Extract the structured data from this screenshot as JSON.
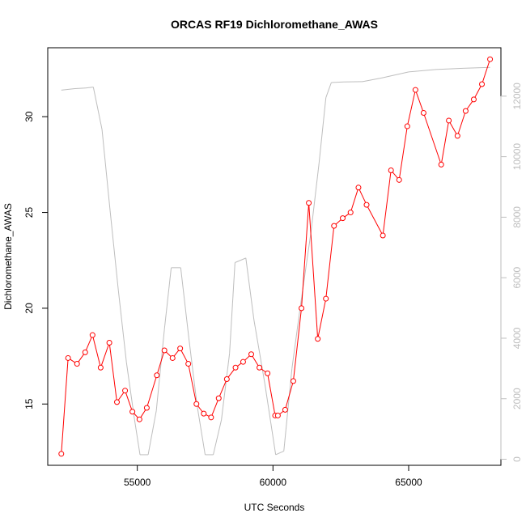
{
  "chart_data": {
    "type": "line",
    "title": "ORCAS RF19 Dichloromethane_AWAS",
    "xlabel": "UTC Seconds",
    "ylabel": "Dichloromethane_AWAS",
    "xlim": [
      51700,
      68400
    ],
    "ylim": [
      11.8,
      33.6
    ],
    "y2lim": [
      -200,
      13600
    ],
    "x_ticks": [
      55000,
      60000,
      65000
    ],
    "y_ticks": [
      15,
      20,
      25,
      30
    ],
    "y2_ticks": [
      0,
      2000,
      4000,
      6000,
      8000,
      10000,
      12000
    ],
    "grid": false,
    "series": [
      {
        "axis": "left",
        "color": "#ff0000",
        "marker": "open-circle",
        "x": [
          52200,
          52450,
          52780,
          53080,
          53350,
          53650,
          53970,
          54250,
          54550,
          54820,
          55080,
          55350,
          55720,
          56000,
          56300,
          56580,
          56880,
          57180,
          57450,
          57720,
          58000,
          58300,
          58620,
          58900,
          59200,
          59500,
          59800,
          60080,
          60180,
          60450,
          60750,
          61050,
          61320,
          61650,
          61950,
          62250,
          62570,
          62860,
          63150,
          63450,
          64050,
          64350,
          64650,
          64950,
          65250,
          65550,
          66200,
          66480,
          66800,
          67100,
          67400,
          67700,
          68000
        ],
        "y": [
          12.4,
          17.4,
          17.1,
          17.7,
          18.6,
          16.9,
          18.2,
          15.1,
          15.7,
          14.6,
          14.2,
          14.8,
          16.5,
          17.8,
          17.4,
          17.9,
          17.1,
          15.0,
          14.5,
          14.3,
          15.3,
          16.3,
          16.9,
          17.2,
          17.6,
          16.9,
          16.6,
          14.4,
          14.4,
          14.7,
          16.2,
          20.0,
          25.5,
          18.4,
          20.5,
          24.3,
          24.7,
          25.0,
          26.3,
          25.4,
          23.8,
          27.2,
          26.7,
          29.5,
          31.4,
          30.2,
          27.5,
          29.8,
          29.0,
          30.3,
          30.9,
          31.7,
          33.0
        ]
      },
      {
        "axis": "right",
        "color": "#bebebe",
        "marker": "none",
        "x": [
          52200,
          52700,
          53100,
          53380,
          53700,
          54000,
          54300,
          54600,
          54900,
          55100,
          55400,
          55700,
          56000,
          56250,
          56600,
          56900,
          57200,
          57500,
          57800,
          58100,
          58400,
          58600,
          59000,
          59300,
          59700,
          60100,
          60400,
          60700,
          61000,
          61400,
          61700,
          61950,
          62150,
          62600,
          63300,
          64000,
          65000,
          66000,
          67000,
          68000
        ],
        "y": [
          12200,
          12250,
          12270,
          12300,
          10900,
          8200,
          5600,
          3200,
          1300,
          150,
          150,
          1600,
          4300,
          6330,
          6330,
          4000,
          1800,
          150,
          150,
          1300,
          3500,
          6500,
          6650,
          4600,
          2500,
          150,
          270,
          3000,
          5000,
          7500,
          9800,
          11950,
          12450,
          12470,
          12480,
          12600,
          12800,
          12880,
          12920,
          12950
        ]
      }
    ]
  }
}
